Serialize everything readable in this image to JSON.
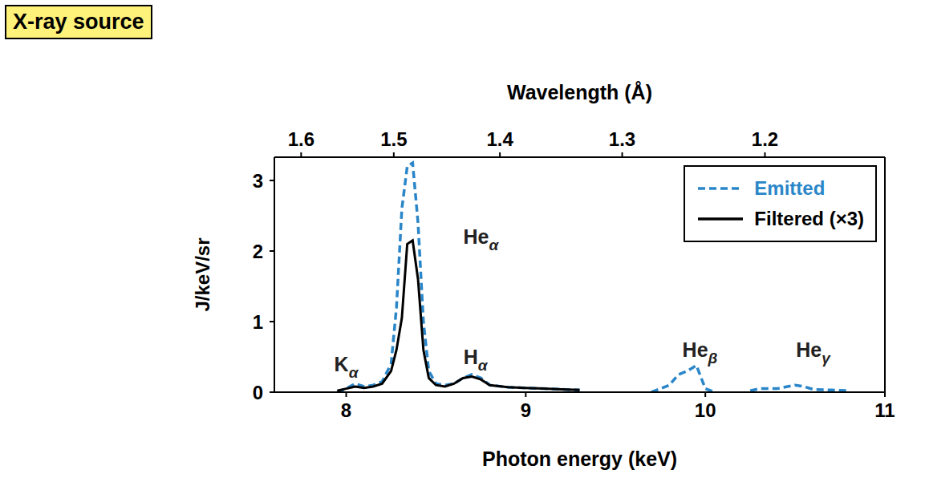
{
  "chart_data": {
    "type": "line",
    "title": "X-ray source",
    "xlabel": "Photon energy (keV)",
    "x2label": "Wavelength (Å)",
    "ylabel": "J/keV/sr",
    "xlim": [
      7.6,
      11
    ],
    "xticks": [
      8,
      9,
      10,
      11
    ],
    "x2lim": [
      7.6,
      11
    ],
    "x2ticks": [
      {
        "value": 7.749,
        "label": "1.6"
      },
      {
        "value": 8.265,
        "label": "1.5"
      },
      {
        "value": 8.856,
        "label": "1.4"
      },
      {
        "value": 9.537,
        "label": "1.3"
      },
      {
        "value": 10.332,
        "label": "1.2"
      }
    ],
    "ylim": [
      0,
      3.33
    ],
    "yticks": [
      0,
      1,
      2,
      3
    ],
    "legend": "upper right",
    "x": [
      7.95,
      8.0,
      8.05,
      8.1,
      8.15,
      8.2,
      8.25,
      8.28,
      8.31,
      8.34,
      8.37,
      8.4,
      8.43,
      8.46,
      8.5,
      8.55,
      8.6,
      8.65,
      8.7,
      8.75,
      8.8,
      8.9,
      9.0,
      9.1,
      9.2,
      9.3,
      9.5,
      9.7,
      9.8,
      9.85,
      9.9,
      9.95,
      10.0,
      10.05,
      10.15,
      10.25,
      10.3,
      10.4,
      10.5,
      10.55,
      10.6,
      10.7,
      10.8
    ],
    "series": [
      {
        "name": "Emitted",
        "color": "#2a86c8",
        "line_style": "dashed",
        "values": [
          0.0,
          0.05,
          0.12,
          0.08,
          0.1,
          0.15,
          0.4,
          1.2,
          2.6,
          3.2,
          3.25,
          2.4,
          1.0,
          0.3,
          0.12,
          0.1,
          0.12,
          0.2,
          0.25,
          0.2,
          0.1,
          0.07,
          0.06,
          0.05,
          0.04,
          0.03,
          null,
          0.0,
          0.1,
          0.25,
          0.3,
          0.38,
          0.05,
          0.0,
          null,
          0.02,
          0.05,
          0.05,
          0.1,
          0.08,
          0.04,
          0.03,
          0.02
        ]
      },
      {
        "name": "Filtered (×3)",
        "color": "#000000",
        "line_style": "solid",
        "values": [
          0.02,
          0.05,
          0.08,
          0.06,
          0.08,
          0.12,
          0.3,
          0.6,
          1.05,
          2.1,
          2.15,
          1.6,
          0.6,
          0.2,
          0.1,
          0.08,
          0.12,
          0.2,
          0.22,
          0.18,
          0.1,
          0.07,
          0.06,
          0.05,
          0.04,
          0.03,
          null,
          null,
          null,
          null,
          null,
          null,
          null,
          null,
          null,
          null,
          null,
          null,
          null,
          null,
          null,
          null,
          null
        ]
      }
    ],
    "annotations": [
      {
        "text": "K",
        "subscript": "α",
        "x": 8.0,
        "y": 0.3
      },
      {
        "text": "He",
        "subscript": "α",
        "x": 8.75,
        "y": 2.1
      },
      {
        "text": "H",
        "subscript": "α",
        "x": 8.72,
        "y": 0.4
      },
      {
        "text": "He",
        "subscript": "β",
        "x": 9.97,
        "y": 0.5
      },
      {
        "text": "He",
        "subscript": "γ",
        "x": 10.6,
        "y": 0.5
      }
    ]
  }
}
